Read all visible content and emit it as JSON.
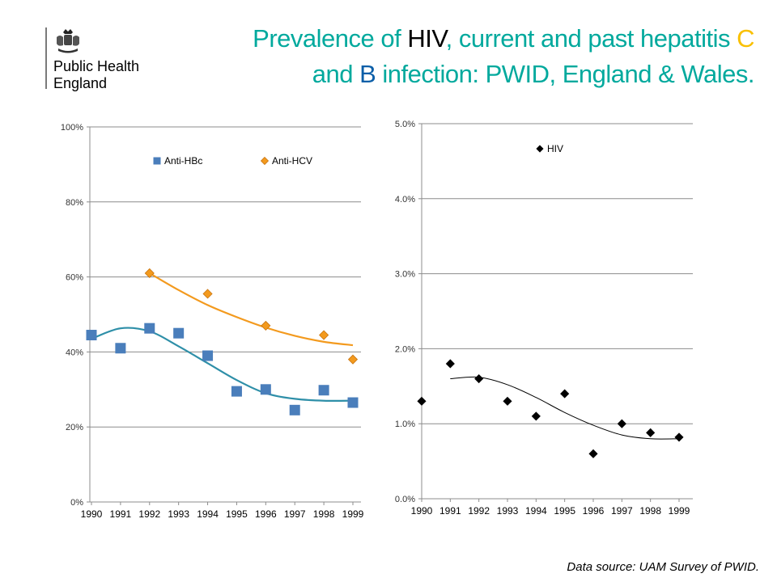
{
  "logo": {
    "organisation": "Public Health\nEngland",
    "icon": "royal-crest-icon"
  },
  "title": {
    "p1": "Prevalence of ",
    "hiv": "HIV",
    "p2": ", current and past hepatitis ",
    "c": "C",
    "p3": " and ",
    "b": "B",
    "p4": " infection: PWID, England & Wales."
  },
  "colors": {
    "title": "#00a99d",
    "hiv_word": "#000000",
    "c_word": "#f9c000",
    "b_word": "#0b5ea8",
    "anti_hbc": "#4a7ebb",
    "anti_hbc_trend": "#2e8fa8",
    "anti_hcv": "#f39a1e",
    "hiv_series": "#000000"
  },
  "source": "Data source: UAM Survey of PWID.",
  "chart_data": [
    {
      "type": "scatter",
      "categories": [
        "1990",
        "1991",
        "1992",
        "1993",
        "1994",
        "1995",
        "1996",
        "1997",
        "1998",
        "1999"
      ],
      "ylim": [
        0,
        100
      ],
      "y_ticks": [
        "0%",
        "20%",
        "40%",
        "60%",
        "80%",
        "100%"
      ],
      "grid": true,
      "legend_position": "top",
      "series": [
        {
          "name": "Anti-HBc",
          "marker": "square",
          "values": [
            44.5,
            41,
            46.3,
            45,
            39,
            29.5,
            30,
            24.5,
            29.8,
            26.5
          ]
        },
        {
          "name": "Anti-HCV",
          "marker": "diamond",
          "values": [
            null,
            null,
            61,
            null,
            55.5,
            null,
            47,
            null,
            44.5,
            38
          ]
        }
      ],
      "trendlines": [
        {
          "series": "Anti-HBc",
          "values": [
            43.5,
            46.3,
            45.5,
            41.5,
            37,
            32.5,
            29,
            27.5,
            27,
            27
          ]
        },
        {
          "series": "Anti-HCV",
          "values": [
            null,
            null,
            61,
            56.5,
            52.5,
            49.3,
            46.5,
            44.3,
            42.7,
            41.8
          ]
        }
      ]
    },
    {
      "type": "scatter",
      "categories": [
        "1990",
        "1991",
        "1992",
        "1993",
        "1994",
        "1995",
        "1996",
        "1997",
        "1998",
        "1999"
      ],
      "ylim": [
        0,
        5
      ],
      "y_ticks": [
        "0.0%",
        "1.0%",
        "2.0%",
        "3.0%",
        "4.0%",
        "5.0%"
      ],
      "grid": true,
      "legend_position": "top",
      "series": [
        {
          "name": "HIV",
          "marker": "diamond",
          "values": [
            1.3,
            1.8,
            1.6,
            1.3,
            1.1,
            1.4,
            0.6,
            1.0,
            0.88,
            0.82
          ]
        }
      ],
      "trendlines": [
        {
          "series": "HIV",
          "values": [
            null,
            1.6,
            1.62,
            1.52,
            1.35,
            1.15,
            0.98,
            0.85,
            0.8,
            0.8
          ]
        }
      ]
    }
  ]
}
